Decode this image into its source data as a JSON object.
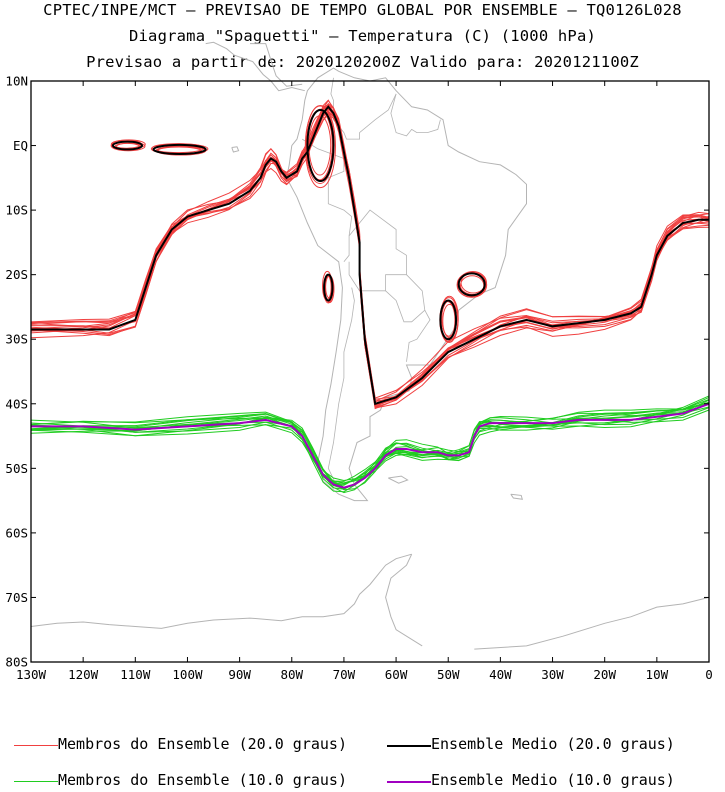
{
  "header": {
    "line1": "CPTEC/INPE/MCT — PREVISAO DE TEMPO GLOBAL POR ENSEMBLE — TQ0126L028",
    "line2": "Diagrama \"Spaguetti\" — Temperatura (C) (1000 hPa)",
    "line3": "Previsao a partir de: 2020120200Z  Valido para: 2020121100Z"
  },
  "legend": {
    "items": [
      {
        "label": "Membros do Ensemble (20.0 graus)",
        "color": "#f04040"
      },
      {
        "label": "Ensemble Medio (20.0 graus)",
        "color": "#000000"
      },
      {
        "label": "Membros do Ensemble (10.0 graus)",
        "color": "#20cc20"
      },
      {
        "label": "Ensemble Medio (10.0 graus)",
        "color": "#a000c0"
      }
    ]
  },
  "chart_data": {
    "type": "line",
    "title": "Diagrama \"Spaguetti\" — Temperatura (C) (1000 hPa)",
    "x_ticks": [
      "130W",
      "120W",
      "110W",
      "100W",
      "90W",
      "80W",
      "70W",
      "60W",
      "50W",
      "40W",
      "30W",
      "20W",
      "10W",
      "0"
    ],
    "y_ticks": [
      "10N",
      "EQ",
      "10S",
      "20S",
      "30S",
      "40S",
      "50S",
      "60S",
      "70S",
      "80S"
    ],
    "xlim": [
      -130,
      0
    ],
    "ylim": [
      -80,
      10
    ],
    "colors": {
      "members_20": "#f04040",
      "mean_20": "#000000",
      "members_10": "#20cc20",
      "mean_10": "#a000c0",
      "coast": "#b4b4b4"
    },
    "series": [
      {
        "name": "Ensemble Medio (20.0 graus)",
        "x": [
          -130,
          -120,
          -115,
          -110,
          -108,
          -106,
          -103,
          -100,
          -96,
          -92,
          -88,
          -86,
          -85,
          -84,
          -83,
          -82,
          -81,
          -79,
          -78,
          -77,
          -76,
          -75,
          -74,
          -73,
          -72,
          -71,
          -70,
          -69,
          -68,
          -67,
          -67,
          -66.5,
          -66,
          -64,
          -60,
          -55,
          -50,
          -45,
          -40,
          -35,
          -30,
          -25,
          -20,
          -15,
          -13,
          -11,
          -10,
          -8,
          -5,
          -2,
          0
        ],
        "y": [
          -28.5,
          -28.5,
          -28.5,
          -27,
          -22,
          -17,
          -13,
          -11,
          -10,
          -9,
          -7,
          -5,
          -3,
          -2,
          -2.5,
          -4,
          -5,
          -4,
          -2,
          -1,
          1,
          3,
          5,
          6,
          5,
          3,
          -1,
          -5,
          -10,
          -15,
          -20,
          -25,
          -30,
          -40,
          -39,
          -36,
          -32,
          -30,
          -28,
          -27,
          -28,
          -27.5,
          -27,
          -26,
          -25,
          -20,
          -17,
          -14,
          -12,
          -11.5,
          -11.5
        ]
      },
      {
        "name": "Ensemble Medio (10.0 graus)",
        "x": [
          -130,
          -120,
          -110,
          -100,
          -90,
          -85,
          -80,
          -78,
          -76,
          -74,
          -72,
          -70,
          -68,
          -66,
          -64,
          -62,
          -60,
          -58,
          -55,
          -52,
          -50,
          -48,
          -46,
          -45,
          -44,
          -42,
          -40,
          -35,
          -30,
          -25,
          -20,
          -15,
          -10,
          -5,
          0
        ],
        "y": [
          -43.5,
          -43.5,
          -44,
          -43.5,
          -43,
          -42.5,
          -43.5,
          -45,
          -48,
          -51,
          -52.5,
          -53,
          -52.5,
          -51.5,
          -50,
          -48,
          -47,
          -47,
          -47.5,
          -47.5,
          -48,
          -48,
          -47.5,
          -45,
          -43.5,
          -43,
          -43,
          -43,
          -43,
          -42.5,
          -42.5,
          -42.5,
          -42,
          -41.5,
          -40
        ]
      }
    ]
  }
}
